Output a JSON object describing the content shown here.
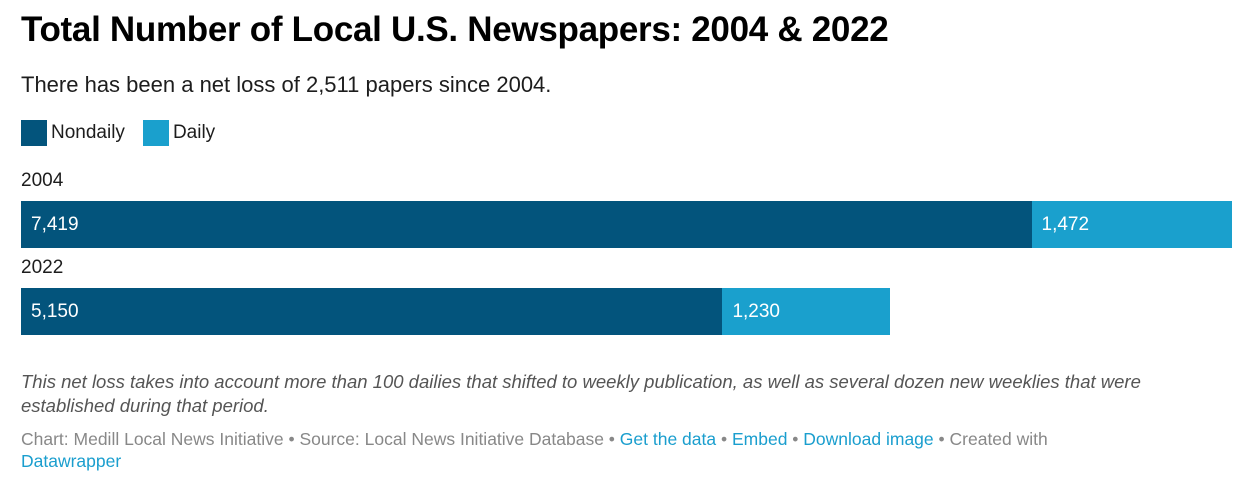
{
  "title": "Total Number of Local U.S. Newspapers: 2004 & 2022",
  "subtitle": "There has been a net loss of 2,511 papers since 2004.",
  "colors": {
    "nondaily": "#03547c",
    "daily": "#1aa0cd",
    "link": "#1a9ece"
  },
  "legend": [
    {
      "label": "Nondaily",
      "color": "#03547c"
    },
    {
      "label": "Daily",
      "color": "#1aa0cd"
    }
  ],
  "chart_data": {
    "type": "bar",
    "orientation": "horizontal",
    "stacked": true,
    "title": "Total Number of Local U.S. Newspapers: 2004 & 2022",
    "subtitle": "There has been a net loss of 2,511 papers since 2004.",
    "categories": [
      "2004",
      "2022"
    ],
    "series": [
      {
        "name": "Nondaily",
        "values": [
          7419,
          5150
        ],
        "labels": [
          "7,419",
          "5,150"
        ]
      },
      {
        "name": "Daily",
        "values": [
          1472,
          1230
        ],
        "labels": [
          "1,472",
          "1,230"
        ]
      }
    ],
    "xlim": [
      0,
      8891
    ],
    "grid": false,
    "legend_position": "top-left"
  },
  "note": "This net loss takes into account more than 100 dailies that shifted to weekly publication, as well as several dozen new weeklies that were established during that period.",
  "footer": {
    "chart_credit": "Chart: Medill Local News Initiative",
    "sep": " • ",
    "source": "Source: Local News Initiative Database",
    "get_data": "Get the data",
    "embed": "Embed",
    "download": "Download image",
    "created_with": "Created with",
    "datawrapper": "Datawrapper"
  }
}
